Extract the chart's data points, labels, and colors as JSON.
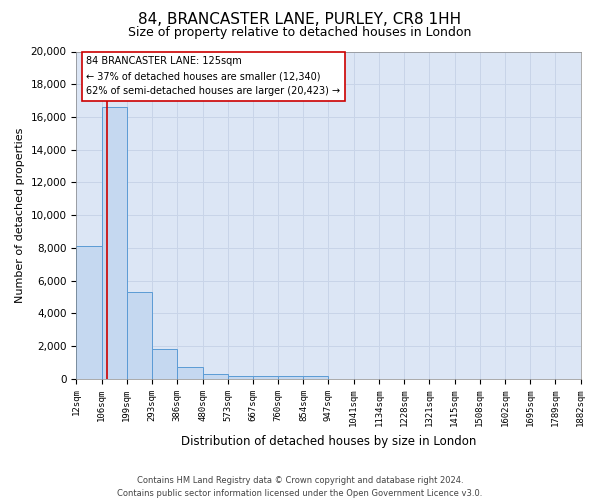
{
  "title": "84, BRANCASTER LANE, PURLEY, CR8 1HH",
  "subtitle": "Size of property relative to detached houses in London",
  "xlabel": "Distribution of detached houses by size in London",
  "ylabel": "Number of detached properties",
  "bin_edges": [
    12,
    106,
    199,
    293,
    386,
    480,
    573,
    667,
    760,
    854,
    947,
    1041,
    1134,
    1228,
    1321,
    1415,
    1508,
    1602,
    1695,
    1789,
    1882
  ],
  "bar_heights": [
    8100,
    16600,
    5300,
    1850,
    700,
    300,
    200,
    200,
    150,
    150,
    0,
    0,
    0,
    0,
    0,
    0,
    0,
    0,
    0,
    0
  ],
  "bar_color": "#c5d8f0",
  "bar_edge_color": "#5b9bd5",
  "grid_color": "#c8d4e8",
  "background_color": "#dce6f5",
  "ylim": [
    0,
    20000
  ],
  "property_size": 125,
  "red_line_color": "#cc0000",
  "annotation_line1": "84 BRANCASTER LANE: 125sqm",
  "annotation_line2": "← 37% of detached houses are smaller (12,340)",
  "annotation_line3": "62% of semi-detached houses are larger (20,423) →",
  "annotation_box_color": "#cc0000",
  "footer_line1": "Contains HM Land Registry data © Crown copyright and database right 2024.",
  "footer_line2": "Contains public sector information licensed under the Open Government Licence v3.0.",
  "title_fontsize": 11,
  "subtitle_fontsize": 9,
  "yticks": [
    0,
    2000,
    4000,
    6000,
    8000,
    10000,
    12000,
    14000,
    16000,
    18000,
    20000
  ]
}
